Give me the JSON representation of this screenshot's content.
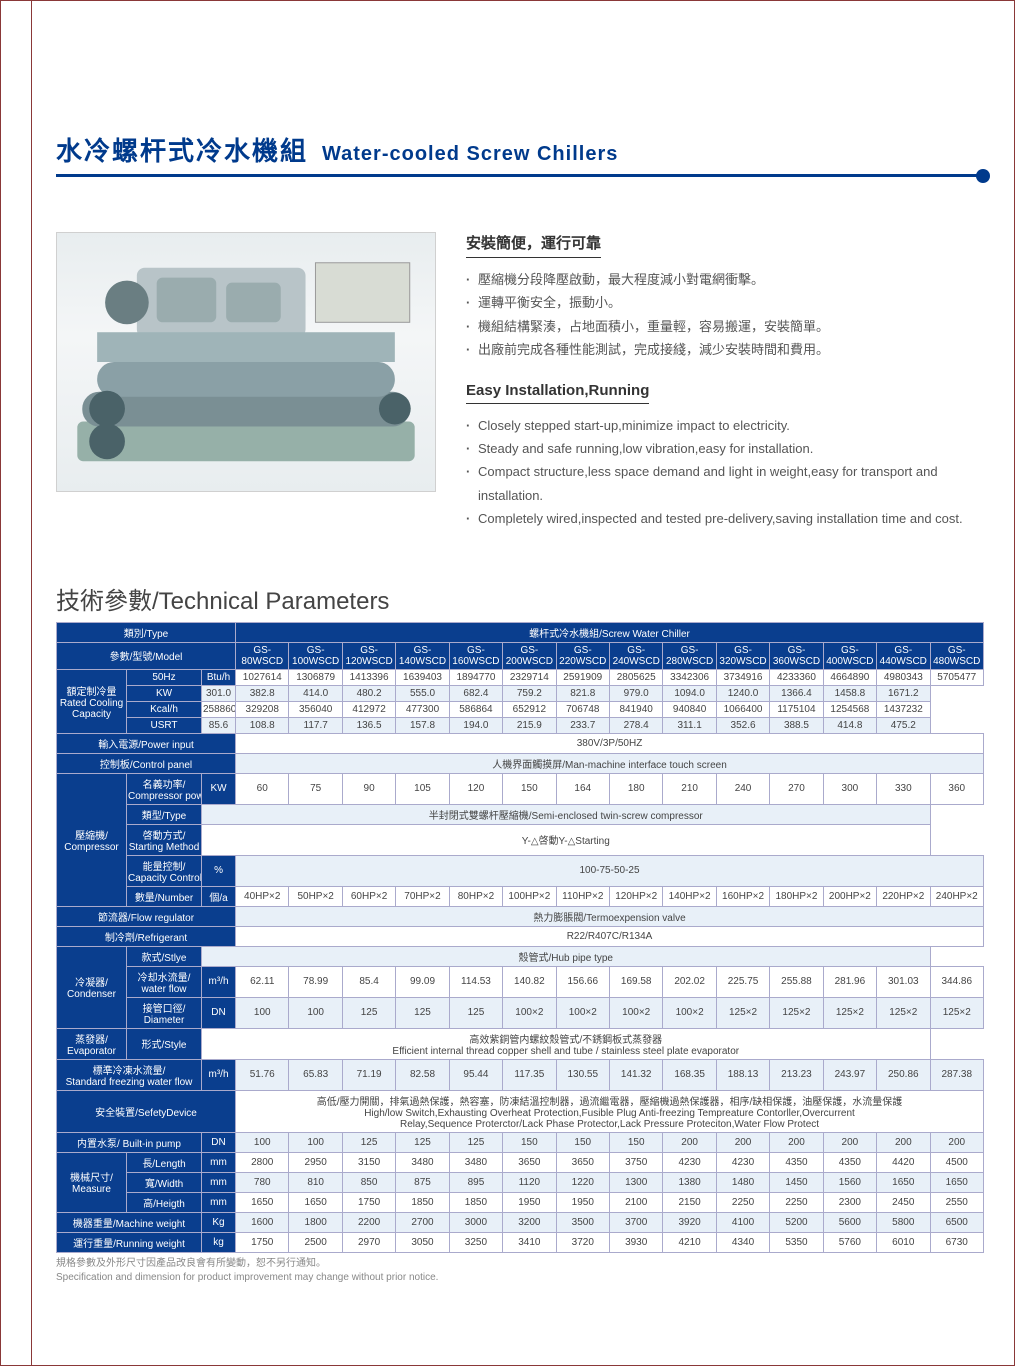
{
  "colors": {
    "brand": "#003a8c",
    "table_header": "#0a3e8e",
    "alt_row": "#e8f0f8",
    "border": "#aac",
    "text": "#444"
  },
  "title": {
    "cn": "水冷螺杆式冷水機組",
    "en": "Water-cooled Screw Chillers"
  },
  "desc": {
    "h1": "安裝簡便，運行可靠",
    "cn": [
      "壓縮機分段降壓啟動，最大程度減小對電網衝擊。",
      "運轉平衡安全，振動小。",
      "機組結構緊湊，占地面積小，重量輕，容易搬運，安裝簡單。",
      "出廠前完成各種性能測試，完成接綫，減少安裝時間和費用。"
    ],
    "h2": "Easy Installation,Running",
    "en": [
      "Closely stepped start-up,minimize impact to electricity.",
      "Steady and safe running,low vibration,easy for installation.",
      "Compact structure,less space demand and light in weight,easy for transport and installation.",
      "Completely wired,inspected and tested pre-delivery,saving installation time and cost."
    ]
  },
  "tech_title": "技術參數/Technical Parameters",
  "headers": {
    "type": "類別/Type",
    "screw": "螺杆式冷水機組/Screw Water Chiller",
    "model": "參數/型號/Model"
  },
  "models": [
    "GS-80WSCD",
    "GS-100WSCD",
    "GS-120WSCD",
    "GS-140WSCD",
    "GS-160WSCD",
    "GS-200WSCD",
    "GS-220WSCD",
    "GS-240WSCD",
    "GS-280WSCD",
    "GS-320WSCD",
    "GS-360WSCD",
    "GS-400WSCD",
    "GS-440WSCD",
    "GS-480WSCD"
  ],
  "rows": [
    {
      "group": "額定制冷量\\nRated Cooling\\nCapacity",
      "sub": "50Hz",
      "unit": "Btu/h",
      "vals": [
        "1027614",
        "1306879",
        "1413396",
        "1639403",
        "1894770",
        "2329714",
        "2591909",
        "2805625",
        "3342306",
        "3734916",
        "4233360",
        "4664890",
        "4980343",
        "5705477"
      ],
      "first": 4
    },
    {
      "unit": "KW",
      "vals": [
        "301.0",
        "382.8",
        "414.0",
        "480.2",
        "555.0",
        "682.4",
        "759.2",
        "821.8",
        "979.0",
        "1094.0",
        "1240.0",
        "1366.4",
        "1458.8",
        "1671.2"
      ],
      "alt": true
    },
    {
      "unit": "Kcal/h",
      "vals": [
        "258860",
        "329208",
        "356040",
        "412972",
        "477300",
        "586864",
        "652912",
        "706748",
        "841940",
        "940840",
        "1066400",
        "1175104",
        "1254568",
        "1437232"
      ]
    },
    {
      "unit": "USRT",
      "vals": [
        "85.6",
        "108.8",
        "117.7",
        "136.5",
        "157.8",
        "194.0",
        "215.9",
        "233.7",
        "278.4",
        "311.1",
        "352.6",
        "388.5",
        "414.8",
        "475.2"
      ],
      "alt": true
    },
    {
      "full_label": "輸入電源/Power input",
      "span": "380V/3P/50HZ"
    },
    {
      "full_label": "控制板/Control panel",
      "span": "人機界面觸摸屏/Man-machine interface touch screen",
      "alt": true
    },
    {
      "group": "壓縮機/\\nCompressor",
      "sub": "名義功率/\\nCompressor power",
      "unit": "KW",
      "vals": [
        "60",
        "75",
        "90",
        "105",
        "120",
        "150",
        "164",
        "180",
        "210",
        "240",
        "270",
        "300",
        "330",
        "360"
      ],
      "first": 5
    },
    {
      "sub": "類型/Type",
      "span": "半封閉式雙螺杆壓縮機/Semi-enclosed twin-screw compressor",
      "alt": true
    },
    {
      "sub": "啓動方式/\\nStarting Method",
      "span": "Y-△啓動Y-△Starting"
    },
    {
      "sub": "能量控制/\\nCapacity Control",
      "unit": "%",
      "span": "100-75-50-25",
      "alt": true
    },
    {
      "sub": "數量/Number",
      "unit": "個/a",
      "vals": [
        "40HP×2",
        "50HP×2",
        "60HP×2",
        "70HP×2",
        "80HP×2",
        "100HP×2",
        "110HP×2",
        "120HP×2",
        "140HP×2",
        "160HP×2",
        "180HP×2",
        "200HP×2",
        "220HP×2",
        "240HP×2"
      ]
    },
    {
      "full_label": "節流器/Flow regulator",
      "span": "熱力膨脹閥/Termoexpension valve",
      "alt": true
    },
    {
      "full_label": "制冷劑/Refrigerant",
      "span": "R22/R407C/R134A"
    },
    {
      "group": "冷凝器/\\nCondenser",
      "sub": "款式/Stlye",
      "span": "殼管式/Hub pipe type",
      "alt": true,
      "first": 3
    },
    {
      "sub": "冷却水流量/\\nwater flow",
      "unit": "m³/h",
      "vals": [
        "62.11",
        "78.99",
        "85.4",
        "99.09",
        "114.53",
        "140.82",
        "156.66",
        "169.58",
        "202.02",
        "225.75",
        "255.88",
        "281.96",
        "301.03",
        "344.86"
      ]
    },
    {
      "sub": "接管口徑/\\nDiameter",
      "unit": "DN",
      "vals": [
        "100",
        "100",
        "125",
        "125",
        "125",
        "100×2",
        "100×2",
        "100×2",
        "100×2",
        "125×2",
        "125×2",
        "125×2",
        "125×2",
        "125×2"
      ],
      "alt": true
    },
    {
      "group": "蒸發器/\\nEvaporator",
      "sub": "形式/Style",
      "span": "高效紫銅管内螺紋殼管式/不銹鋼板式蒸發器\\nEfficient internal thread copper shell and tube / stainless steel plate evaporator",
      "first": 1
    },
    {
      "full_label": "標準冷凍水流量/\\nStandard freezing water flow",
      "unit": "m³/h",
      "vals": [
        "51.76",
        "65.83",
        "71.19",
        "82.58",
        "95.44",
        "117.35",
        "130.55",
        "141.32",
        "168.35",
        "188.13",
        "213.23",
        "243.97",
        "250.86",
        "287.38"
      ],
      "alt": true
    },
    {
      "full_label": "安全裝置/SefetyDevice",
      "span": "高低/壓力開關，排氣過熱保護，熱容塞，防凍結溫控制器，過流繼電器，壓縮機過熱保護器，相序/缺相保護，油壓保護，水流量保護\\nHigh/low Switch,Exhausting Overheat Protection,Fusible Plug Anti-freezing Tempreature Contorller,Overcurrent\\nRelay,Sequence Proterctor/Lack Phase Protector,Lack Pressure Proteciton,Water Flow Protect",
      "tall": true
    },
    {
      "full_label": "内置水泵/ Built-in pump",
      "unit": "DN",
      "vals": [
        "100",
        "100",
        "125",
        "125",
        "125",
        "150",
        "150",
        "150",
        "200",
        "200",
        "200",
        "200",
        "200",
        "200"
      ],
      "alt": true
    },
    {
      "group": "機械尺寸/\\nMeasure",
      "sub": "長/Length",
      "unit": "mm",
      "vals": [
        "2800",
        "2950",
        "3150",
        "3480",
        "3480",
        "3650",
        "3650",
        "3750",
        "4230",
        "4230",
        "4350",
        "4350",
        "4420",
        "4500"
      ],
      "first": 3
    },
    {
      "sub": "寬/Width",
      "unit": "mm",
      "vals": [
        "780",
        "810",
        "850",
        "875",
        "895",
        "1120",
        "1220",
        "1300",
        "1380",
        "1480",
        "1450",
        "1560",
        "1650",
        "1650"
      ],
      "alt": true
    },
    {
      "sub": "高/Heigth",
      "unit": "mm",
      "vals": [
        "1650",
        "1650",
        "1750",
        "1850",
        "1850",
        "1950",
        "1950",
        "2100",
        "2150",
        "2250",
        "2250",
        "2300",
        "2450",
        "2550"
      ]
    },
    {
      "full_label": "機器重量/Machine weight",
      "unit": "Kg",
      "vals": [
        "1600",
        "1800",
        "2200",
        "2700",
        "3000",
        "3200",
        "3500",
        "3700",
        "3920",
        "4100",
        "5200",
        "5600",
        "5800",
        "6500"
      ],
      "alt": true
    },
    {
      "full_label": "運行重量/Running weight",
      "unit": "kg",
      "vals": [
        "1750",
        "2500",
        "2970",
        "3050",
        "3250",
        "3410",
        "3720",
        "3930",
        "4210",
        "4340",
        "5350",
        "5760",
        "6010",
        "6730"
      ]
    }
  ],
  "footnote": {
    "cn": "規格參數及外形尺寸因產品改良會有所變動，恕不另行通知。",
    "en": "Specification and dimension for product improvement may change without prior notice."
  }
}
